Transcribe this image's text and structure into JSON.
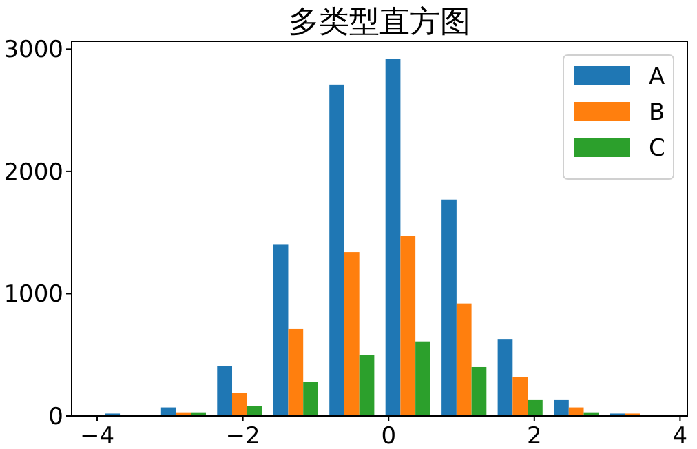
{
  "chart_data": {
    "type": "histogram",
    "title": "多类型直方图",
    "bins": [
      -3.97,
      -3.2,
      -2.43,
      -1.66,
      -0.89,
      -0.12,
      0.65,
      1.42,
      2.19,
      2.96,
      3.73
    ],
    "series": [
      {
        "name": "A",
        "color": "#1f77b4",
        "values": [
          20,
          70,
          410,
          1400,
          2710,
          2920,
          1770,
          630,
          130,
          20
        ]
      },
      {
        "name": "B",
        "color": "#ff7f0e",
        "values": [
          10,
          30,
          190,
          710,
          1340,
          1470,
          920,
          320,
          70,
          20
        ]
      },
      {
        "name": "C",
        "color": "#2ca02c",
        "values": [
          10,
          30,
          80,
          280,
          500,
          610,
          400,
          130,
          30,
          0
        ]
      }
    ],
    "xlim": [
      -4.35,
      4.1
    ],
    "xticks": [
      -4,
      -2,
      0,
      2,
      4
    ],
    "ylim": [
      0,
      3064
    ],
    "yticks": [
      0,
      1000,
      2000,
      3000
    ],
    "legend": "top right"
  }
}
